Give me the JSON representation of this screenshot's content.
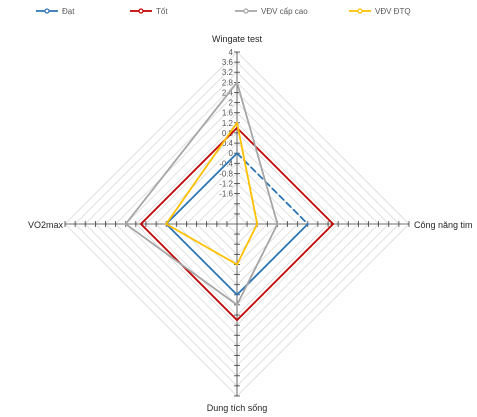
{
  "chart_data": {
    "type": "radar",
    "axes": [
      "Wingate test",
      "Công năng tim",
      "Dung tích sống",
      "VO2max"
    ],
    "radial_ticks": [
      "4",
      "3.6",
      "3.2",
      "2.8",
      "2.4",
      "2",
      "1.6",
      "1.2",
      "0.8",
      "0.4",
      "0",
      "-0.4",
      "-0.8",
      "-1.2",
      "-1.6"
    ],
    "rlim": [
      -2.8,
      4
    ],
    "grid": true,
    "legend_position": "top",
    "series": [
      {
        "name": "Đạt",
        "color": "#2e75b6",
        "values": [
          0,
          0,
          0,
          0
        ]
      },
      {
        "name": "Tốt",
        "color": "#c00000",
        "values": [
          1,
          1,
          1,
          1
        ]
      },
      {
        "name": "VĐV cấp cao",
        "color": "#a6a6a6",
        "values": [
          2.8,
          -1.2,
          0.4,
          1.6
        ]
      },
      {
        "name": "VĐV ĐTQ",
        "color": "#ffc000",
        "values": [
          1.2,
          -2.0,
          -1.2,
          0
        ]
      }
    ]
  }
}
